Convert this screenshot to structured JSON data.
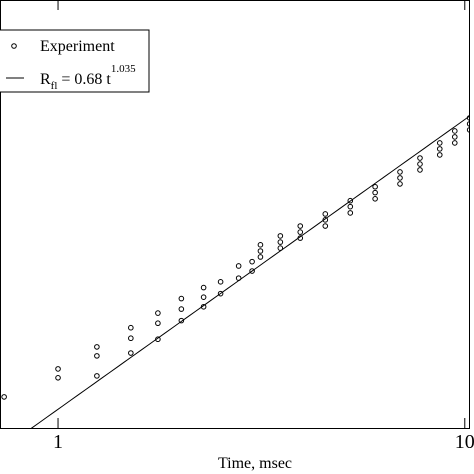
{
  "chart_data": {
    "type": "scatter",
    "x_label": "Time, msec",
    "xlog": true,
    "ylog": true,
    "xlim": [
      0.72,
      10.3
    ],
    "ylim": [
      0.583,
      19.7
    ],
    "xticks": [
      1,
      10
    ],
    "legend": "upper left",
    "series": [
      {
        "name": "Experiment",
        "color": "#000000",
        "marker": "circle",
        "x": [
          0.737,
          1,
          1,
          1.246,
          1.246,
          1.246,
          1.51,
          1.51,
          1.51,
          1.76,
          1.76,
          1.76,
          2.01,
          2.01,
          2.01,
          2.28,
          2.28,
          2.28,
          2.51,
          2.51,
          2.78,
          2.78,
          3.0,
          3.0,
          3.145,
          3.52,
          3.94,
          4.54,
          5.23,
          6.02,
          6.93,
          7.76,
          8.68,
          9.45,
          10.28,
          3.145,
          3.52,
          3.94,
          4.54,
          5.23,
          6.02,
          6.93,
          7.76,
          8.68,
          9.45,
          10.28,
          3.145,
          3.52,
          3.94,
          4.54,
          5.23,
          6.02,
          6.93,
          7.76,
          8.68,
          9.45,
          10.28
        ],
        "values": [
          0.753,
          0.948,
          0.881,
          1.136,
          1.055,
          0.895,
          1.33,
          1.22,
          1.08,
          1.5,
          1.38,
          1.21,
          1.69,
          1.55,
          1.41,
          1.85,
          1.71,
          1.58,
          1.94,
          1.76,
          2.21,
          2.0,
          2.29,
          2.12,
          2.63,
          2.83,
          3.07,
          3.39,
          3.78,
          4.24,
          4.79,
          5.37,
          6.08,
          6.71,
          7.47,
          2.5,
          2.69,
          2.92,
          3.23,
          3.6,
          4.04,
          4.56,
          5.11,
          5.79,
          6.39,
          7.11,
          2.38,
          2.56,
          2.78,
          3.07,
          3.42,
          3.84,
          4.34,
          4.87,
          5.51,
          6.08,
          6.77
        ]
      },
      {
        "type": "line",
        "color": "#000000",
        "a": 0.68,
        "b": 1.035,
        "label_parts": [
          "R",
          "fl",
          " = 0.68 t",
          "1.035"
        ]
      }
    ]
  }
}
